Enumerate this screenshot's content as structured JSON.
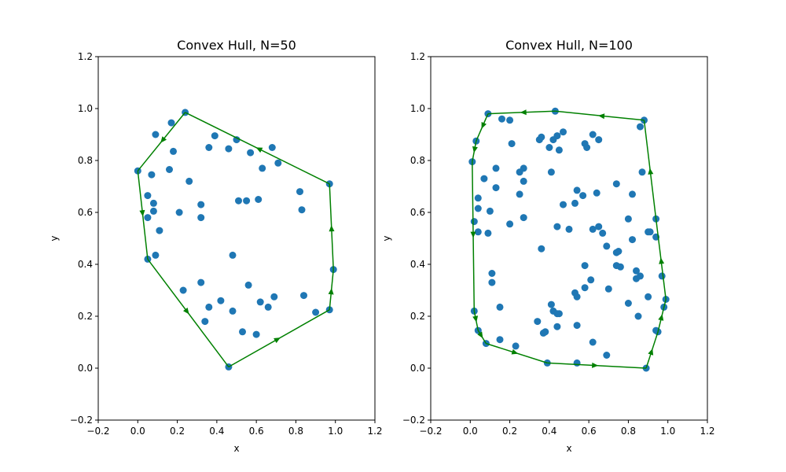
{
  "colors": {
    "points": "#1f77b4",
    "hull": "#008000",
    "axes": "#000000"
  },
  "chart_data": [
    {
      "type": "scatter",
      "title": "Convex Hull, N=50",
      "xlabel": "x",
      "ylabel": "y",
      "xlim": [
        -0.2,
        1.2
      ],
      "ylim": [
        -0.2,
        1.2
      ],
      "xticks": [
        "−0.2",
        "0.0",
        "0.2",
        "0.4",
        "0.6",
        "0.8",
        "1.0",
        "1.2"
      ],
      "yticks": [
        "−0.2",
        "0.0",
        "0.2",
        "0.4",
        "0.6",
        "0.8",
        "1.0",
        "1.2"
      ],
      "grid": false,
      "points": [
        [
          0.24,
          0.985
        ],
        [
          0.17,
          0.945
        ],
        [
          0.09,
          0.9
        ],
        [
          0.39,
          0.895
        ],
        [
          0.5,
          0.88
        ],
        [
          0.18,
          0.835
        ],
        [
          0.36,
          0.85
        ],
        [
          0.46,
          0.845
        ],
        [
          0.57,
          0.83
        ],
        [
          0.68,
          0.85
        ],
        [
          0.71,
          0.79
        ],
        [
          0.63,
          0.77
        ],
        [
          0.0,
          0.76
        ],
        [
          0.16,
          0.765
        ],
        [
          0.07,
          0.745
        ],
        [
          0.26,
          0.72
        ],
        [
          0.97,
          0.71
        ],
        [
          0.82,
          0.68
        ],
        [
          0.83,
          0.61
        ],
        [
          0.05,
          0.665
        ],
        [
          0.08,
          0.635
        ],
        [
          0.08,
          0.605
        ],
        [
          0.05,
          0.58
        ],
        [
          0.21,
          0.6
        ],
        [
          0.32,
          0.63
        ],
        [
          0.32,
          0.58
        ],
        [
          0.51,
          0.645
        ],
        [
          0.55,
          0.645
        ],
        [
          0.61,
          0.65
        ],
        [
          0.11,
          0.53
        ],
        [
          0.05,
          0.42
        ],
        [
          0.09,
          0.435
        ],
        [
          0.48,
          0.435
        ],
        [
          0.99,
          0.38
        ],
        [
          0.32,
          0.33
        ],
        [
          0.56,
          0.32
        ],
        [
          0.23,
          0.3
        ],
        [
          0.84,
          0.28
        ],
        [
          0.69,
          0.275
        ],
        [
          0.42,
          0.26
        ],
        [
          0.36,
          0.235
        ],
        [
          0.62,
          0.255
        ],
        [
          0.66,
          0.235
        ],
        [
          0.48,
          0.22
        ],
        [
          0.9,
          0.215
        ],
        [
          0.97,
          0.225
        ],
        [
          0.34,
          0.18
        ],
        [
          0.53,
          0.14
        ],
        [
          0.6,
          0.13
        ],
        [
          0.46,
          0.005
        ]
      ],
      "hull": [
        [
          0.24,
          0.985
        ],
        [
          0.0,
          0.76
        ],
        [
          0.05,
          0.42
        ],
        [
          0.46,
          0.005
        ],
        [
          0.97,
          0.225
        ],
        [
          0.99,
          0.38
        ],
        [
          0.97,
          0.71
        ],
        [
          0.24,
          0.985
        ]
      ]
    },
    {
      "type": "scatter",
      "title": "Convex Hull, N=100",
      "xlabel": "x",
      "ylabel": "y",
      "xlim": [
        -0.2,
        1.2
      ],
      "ylim": [
        -0.2,
        1.2
      ],
      "xticks": [
        "−0.2",
        "0.0",
        "0.2",
        "0.4",
        "0.6",
        "0.8",
        "1.0",
        "1.2"
      ],
      "yticks": [
        "−0.2",
        "0.0",
        "0.2",
        "0.4",
        "0.6",
        "0.8",
        "1.0",
        "1.2"
      ],
      "grid": false,
      "points": [
        [
          0.43,
          0.99
        ],
        [
          0.09,
          0.98
        ],
        [
          0.16,
          0.96
        ],
        [
          0.2,
          0.955
        ],
        [
          0.88,
          0.955
        ],
        [
          0.86,
          0.93
        ],
        [
          0.47,
          0.91
        ],
        [
          0.44,
          0.895
        ],
        [
          0.62,
          0.9
        ],
        [
          0.35,
          0.88
        ],
        [
          0.36,
          0.89
        ],
        [
          0.42,
          0.88
        ],
        [
          0.65,
          0.88
        ],
        [
          0.03,
          0.875
        ],
        [
          0.21,
          0.865
        ],
        [
          0.58,
          0.865
        ],
        [
          0.59,
          0.85
        ],
        [
          0.4,
          0.85
        ],
        [
          0.45,
          0.84
        ],
        [
          0.01,
          0.795
        ],
        [
          0.13,
          0.77
        ],
        [
          0.27,
          0.77
        ],
        [
          0.25,
          0.755
        ],
        [
          0.41,
          0.755
        ],
        [
          0.87,
          0.755
        ],
        [
          0.07,
          0.73
        ],
        [
          0.27,
          0.72
        ],
        [
          0.74,
          0.71
        ],
        [
          0.13,
          0.695
        ],
        [
          0.54,
          0.685
        ],
        [
          0.64,
          0.675
        ],
        [
          0.25,
          0.67
        ],
        [
          0.82,
          0.67
        ],
        [
          0.57,
          0.665
        ],
        [
          0.04,
          0.655
        ],
        [
          0.47,
          0.63
        ],
        [
          0.53,
          0.635
        ],
        [
          0.04,
          0.615
        ],
        [
          0.1,
          0.605
        ],
        [
          0.27,
          0.58
        ],
        [
          0.94,
          0.575
        ],
        [
          0.8,
          0.575
        ],
        [
          0.02,
          0.565
        ],
        [
          0.2,
          0.555
        ],
        [
          0.44,
          0.545
        ],
        [
          0.65,
          0.545
        ],
        [
          0.62,
          0.535
        ],
        [
          0.5,
          0.535
        ],
        [
          0.04,
          0.525
        ],
        [
          0.09,
          0.52
        ],
        [
          0.67,
          0.52
        ],
        [
          0.9,
          0.525
        ],
        [
          0.91,
          0.525
        ],
        [
          0.94,
          0.505
        ],
        [
          0.82,
          0.495
        ],
        [
          0.69,
          0.47
        ],
        [
          0.36,
          0.46
        ],
        [
          0.74,
          0.445
        ],
        [
          0.75,
          0.45
        ],
        [
          0.58,
          0.395
        ],
        [
          0.74,
          0.395
        ],
        [
          0.76,
          0.39
        ],
        [
          0.84,
          0.375
        ],
        [
          0.11,
          0.365
        ],
        [
          0.86,
          0.355
        ],
        [
          0.84,
          0.345
        ],
        [
          0.97,
          0.355
        ],
        [
          0.61,
          0.34
        ],
        [
          0.11,
          0.33
        ],
        [
          0.58,
          0.31
        ],
        [
          0.7,
          0.305
        ],
        [
          0.53,
          0.29
        ],
        [
          0.54,
          0.275
        ],
        [
          0.9,
          0.275
        ],
        [
          0.99,
          0.265
        ],
        [
          0.8,
          0.25
        ],
        [
          0.41,
          0.245
        ],
        [
          0.15,
          0.235
        ],
        [
          0.98,
          0.235
        ],
        [
          0.42,
          0.22
        ],
        [
          0.02,
          0.22
        ],
        [
          0.44,
          0.21
        ],
        [
          0.45,
          0.21
        ],
        [
          0.85,
          0.2
        ],
        [
          0.34,
          0.18
        ],
        [
          0.44,
          0.16
        ],
        [
          0.54,
          0.165
        ],
        [
          0.94,
          0.145
        ],
        [
          0.95,
          0.14
        ],
        [
          0.37,
          0.135
        ],
        [
          0.38,
          0.14
        ],
        [
          0.04,
          0.145
        ],
        [
          0.15,
          0.11
        ],
        [
          0.62,
          0.1
        ],
        [
          0.08,
          0.095
        ],
        [
          0.23,
          0.085
        ],
        [
          0.69,
          0.05
        ],
        [
          0.39,
          0.02
        ],
        [
          0.54,
          0.02
        ],
        [
          0.89,
          0.0
        ]
      ],
      "hull": [
        [
          0.43,
          0.99
        ],
        [
          0.09,
          0.98
        ],
        [
          0.03,
          0.875
        ],
        [
          0.01,
          0.795
        ],
        [
          0.02,
          0.22
        ],
        [
          0.04,
          0.145
        ],
        [
          0.08,
          0.095
        ],
        [
          0.39,
          0.02
        ],
        [
          0.89,
          0.0
        ],
        [
          0.95,
          0.14
        ],
        [
          0.99,
          0.265
        ],
        [
          0.94,
          0.575
        ],
        [
          0.88,
          0.955
        ],
        [
          0.43,
          0.99
        ]
      ]
    }
  ]
}
